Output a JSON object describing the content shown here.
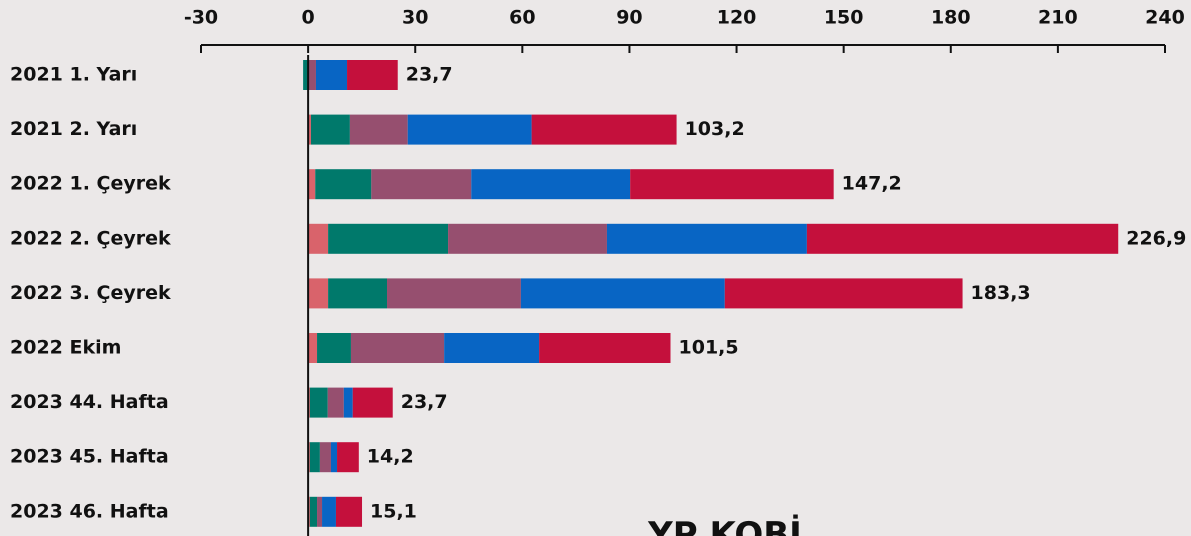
{
  "chart_data": {
    "type": "stacked-bar-horizontal",
    "categories": [
      "2021 1. Yarı",
      "2021 2. Yarı",
      "2022 1. Çeyrek",
      "2022 2. Çeyrek",
      "2022 3. Çeyrek",
      "2022 Ekim",
      "2023 44. Hafta",
      "2023 45. Hafta",
      "2023 46. Hafta"
    ],
    "series": [
      {
        "color": "#d9636b",
        "values": [
          0,
          0.8,
          2.0,
          5.6,
          5.6,
          2.5,
          0.5,
          0.5,
          0.5
        ]
      },
      {
        "color": "#00796b",
        "values": [
          -1.4,
          10.9,
          15.7,
          33.6,
          16.5,
          9.5,
          5.0,
          2.8,
          2.0
        ]
      },
      {
        "color": "#964f6f",
        "values": [
          2.2,
          16.2,
          28.0,
          44.5,
          37.5,
          26.1,
          4.5,
          3.1,
          1.4
        ]
      },
      {
        "color": "#0865c4",
        "values": [
          8.7,
          34.7,
          44.5,
          56.0,
          57.1,
          26.6,
          2.5,
          1.7,
          3.9
        ]
      },
      {
        "color": "#c4103c",
        "values": [
          14.2,
          40.6,
          57.0,
          87.2,
          66.6,
          36.8,
          11.2,
          6.1,
          7.3
        ]
      }
    ],
    "totals": [
      23.7,
      103.2,
      147.2,
      226.9,
      183.3,
      101.5,
      23.7,
      14.2,
      15.1
    ],
    "value_labels": [
      "23,7",
      "103,2",
      "147,2",
      "226,9",
      "183,3",
      "101,5",
      "23,7",
      "14,2",
      "15,1"
    ],
    "xlim": [
      -30,
      240
    ],
    "xticks": [
      -30,
      0,
      30,
      60,
      90,
      120,
      150,
      180,
      210,
      240
    ],
    "annotation": "YP KOBİ"
  }
}
